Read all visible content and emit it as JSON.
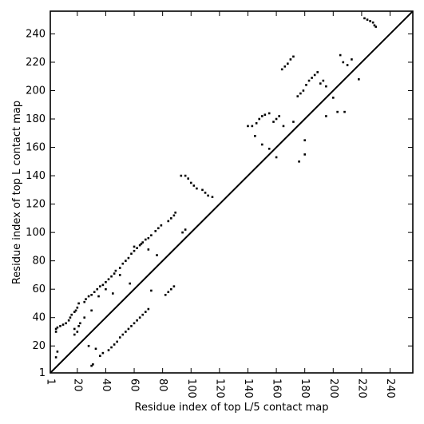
{
  "chart_data": {
    "type": "scatter",
    "title": "",
    "xlabel": "Residue index of top L/5 contact map",
    "ylabel": "Residue index of top L contact map",
    "xlim": [
      1,
      256
    ],
    "ylim": [
      1,
      256
    ],
    "xticks": [
      1,
      20,
      40,
      60,
      80,
      100,
      120,
      140,
      160,
      180,
      200,
      220,
      240
    ],
    "yticks": [
      1,
      20,
      40,
      60,
      80,
      100,
      120,
      140,
      160,
      180,
      200,
      220,
      240
    ],
    "x_tick_rotation": -90,
    "diagonal": true,
    "marker": "square",
    "marker_color": "#000000",
    "line_color": "#000000",
    "upper_points": [
      [
        5,
        30
      ],
      [
        5,
        32
      ],
      [
        6,
        33
      ],
      [
        8,
        34
      ],
      [
        10,
        35
      ],
      [
        12,
        36
      ],
      [
        14,
        38
      ],
      [
        15,
        40
      ],
      [
        16,
        42
      ],
      [
        18,
        44
      ],
      [
        19,
        45
      ],
      [
        20,
        47
      ],
      [
        21,
        50
      ],
      [
        25,
        51
      ],
      [
        26,
        53
      ],
      [
        28,
        55
      ],
      [
        30,
        56
      ],
      [
        32,
        58
      ],
      [
        34,
        60
      ],
      [
        36,
        62
      ],
      [
        38,
        63
      ],
      [
        40,
        65
      ],
      [
        42,
        67
      ],
      [
        44,
        69
      ],
      [
        46,
        71
      ],
      [
        47,
        73
      ],
      [
        50,
        75
      ],
      [
        52,
        78
      ],
      [
        54,
        80
      ],
      [
        56,
        82
      ],
      [
        58,
        85
      ],
      [
        60,
        87
      ],
      [
        62,
        89
      ],
      [
        64,
        91
      ],
      [
        66,
        93
      ],
      [
        68,
        95
      ],
      [
        70,
        96
      ],
      [
        72,
        98
      ],
      [
        75,
        101
      ],
      [
        77,
        103
      ],
      [
        79,
        105
      ],
      [
        84,
        108
      ],
      [
        86,
        110
      ],
      [
        88,
        112
      ],
      [
        89,
        114
      ],
      [
        93,
        140
      ],
      [
        96,
        140
      ],
      [
        98,
        138
      ],
      [
        100,
        135
      ],
      [
        102,
        133
      ],
      [
        104,
        131
      ],
      [
        108,
        130
      ],
      [
        110,
        128
      ],
      [
        112,
        126
      ],
      [
        115,
        125
      ],
      [
        143,
        175
      ],
      [
        146,
        177
      ],
      [
        148,
        180
      ],
      [
        150,
        182
      ],
      [
        152,
        183
      ],
      [
        155,
        184
      ],
      [
        158,
        178
      ],
      [
        160,
        180
      ],
      [
        162,
        182
      ],
      [
        164,
        215
      ],
      [
        166,
        217
      ],
      [
        168,
        219
      ],
      [
        170,
        222
      ],
      [
        172,
        224
      ],
      [
        175,
        196
      ],
      [
        177,
        198
      ],
      [
        179,
        200
      ],
      [
        181,
        204
      ],
      [
        183,
        207
      ],
      [
        185,
        209
      ],
      [
        187,
        211
      ],
      [
        189,
        213
      ],
      [
        191,
        205
      ],
      [
        193,
        207
      ],
      [
        195,
        203
      ],
      [
        205,
        225
      ],
      [
        207,
        220
      ],
      [
        210,
        218
      ],
      [
        213,
        222
      ],
      [
        218,
        208
      ],
      [
        222,
        251
      ],
      [
        224,
        250
      ],
      [
        226,
        249
      ],
      [
        228,
        248
      ],
      [
        229,
        246
      ],
      [
        230,
        245
      ],
      [
        20,
        30
      ],
      [
        25,
        40
      ],
      [
        30,
        45
      ],
      [
        35,
        55
      ],
      [
        45,
        57
      ],
      [
        57,
        64
      ],
      [
        60,
        90
      ],
      [
        65,
        92
      ],
      [
        70,
        88
      ],
      [
        76,
        84
      ],
      [
        165,
        175
      ],
      [
        172,
        178
      ],
      [
        176,
        150
      ],
      [
        180,
        155
      ],
      [
        140,
        175
      ],
      [
        145,
        168
      ],
      [
        150,
        162
      ],
      [
        160,
        153
      ],
      [
        40,
        60
      ],
      [
        50,
        70
      ]
    ],
    "lower_points": [
      [
        5,
        12
      ],
      [
        6,
        16
      ],
      [
        18,
        28
      ],
      [
        18,
        32
      ],
      [
        21,
        34
      ],
      [
        22,
        36
      ],
      [
        28,
        20
      ],
      [
        30,
        6
      ],
      [
        31,
        7
      ],
      [
        33,
        18
      ],
      [
        36,
        13
      ],
      [
        38,
        15
      ],
      [
        42,
        17
      ],
      [
        44,
        19
      ],
      [
        46,
        21
      ],
      [
        48,
        23
      ],
      [
        50,
        26
      ],
      [
        52,
        28
      ],
      [
        54,
        30
      ],
      [
        56,
        32
      ],
      [
        58,
        34
      ],
      [
        60,
        36
      ],
      [
        62,
        38
      ],
      [
        64,
        40
      ],
      [
        66,
        42
      ],
      [
        68,
        44
      ],
      [
        70,
        46
      ],
      [
        72,
        59
      ],
      [
        82,
        56
      ],
      [
        84,
        58
      ],
      [
        86,
        60
      ],
      [
        88,
        62
      ],
      [
        96,
        102
      ],
      [
        94,
        100
      ],
      [
        200,
        195
      ],
      [
        203,
        185
      ],
      [
        208,
        185
      ],
      [
        195,
        182
      ],
      [
        180,
        165
      ],
      [
        155,
        159
      ]
    ]
  }
}
